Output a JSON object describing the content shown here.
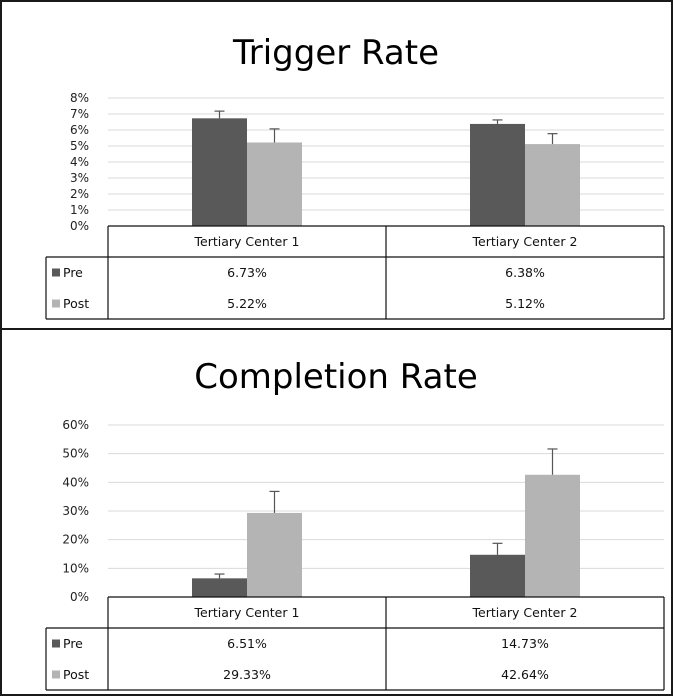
{
  "chart_data": [
    {
      "type": "bar",
      "title": "Trigger Rate",
      "categories": [
        "Tertiary Center 1",
        "Tertiary Center 2"
      ],
      "series": [
        {
          "name": "Pre",
          "values": [
            6.73,
            6.38
          ],
          "labels": [
            "6.73%",
            "6.38%"
          ],
          "error_plus": [
            0.45,
            0.25
          ]
        },
        {
          "name": "Post",
          "values": [
            5.22,
            5.12
          ],
          "labels": [
            "5.22%",
            "5.12%"
          ],
          "error_plus": [
            0.85,
            0.65
          ]
        }
      ],
      "ylim": [
        0,
        8
      ],
      "yticks": [
        "0%",
        "1%",
        "2%",
        "3%",
        "4%",
        "5%",
        "6%",
        "7%",
        "8%"
      ],
      "grid": true,
      "legend": "data-table"
    },
    {
      "type": "bar",
      "title": "Completion Rate",
      "categories": [
        "Tertiary Center 1",
        "Tertiary Center 2"
      ],
      "series": [
        {
          "name": "Pre",
          "values": [
            6.51,
            14.73
          ],
          "labels": [
            "6.51%",
            "14.73%"
          ],
          "error_plus": [
            1.5,
            4.0
          ]
        },
        {
          "name": "Post",
          "values": [
            29.33,
            42.64
          ],
          "labels": [
            "29.33%",
            "42.64%"
          ],
          "error_plus": [
            7.5,
            9.0
          ]
        }
      ],
      "ylim": [
        0,
        60
      ],
      "yticks": [
        "0%",
        "10%",
        "20%",
        "30%",
        "40%",
        "50%",
        "60%"
      ],
      "grid": true,
      "legend": "data-table"
    }
  ],
  "colors": {
    "Pre": "#595959",
    "Post": "#b4b4b4",
    "grid": "#d9d9d9",
    "border": "#1a1a1a"
  }
}
